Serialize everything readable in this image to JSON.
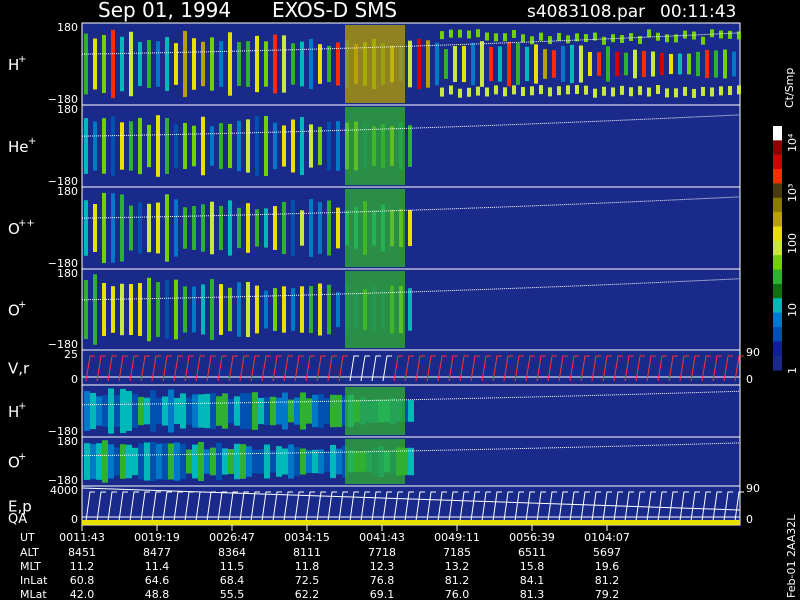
{
  "header": {
    "date": "Sep 01, 1994",
    "instrument": "EXOS-D SMS",
    "file": "s4083108.par",
    "time": "00:11:43"
  },
  "chart_data": {
    "type": "heatmap",
    "panels": [
      {
        "label": "H",
        "sup": "+",
        "ytop": "180",
        "ybot": "−180",
        "density": "high"
      },
      {
        "label": "He",
        "sup": "+",
        "ytop": "180",
        "ybot": "−180",
        "density": "med"
      },
      {
        "label": "O",
        "sup": "++",
        "ytop": "180",
        "ybot": "−180",
        "density": "med"
      },
      {
        "label": "O",
        "sup": "+",
        "ytop": "180",
        "ybot": "−180",
        "density": "med"
      },
      {
        "label": "V,r",
        "sup": "",
        "ytop": "25",
        "ybot": "0",
        "kind": "line",
        "right_top": "90",
        "right_bot": "0"
      },
      {
        "label": "H",
        "sup": "+",
        "ytop": "",
        "ybot": "−180",
        "density": "low"
      },
      {
        "label": "O",
        "sup": "+",
        "ytop": "180",
        "ybot": "−180",
        "density": "low"
      },
      {
        "label": "E,p",
        "label2": "QA",
        "sup": "",
        "ytop": "4000",
        "ybot": "0",
        "kind": "line",
        "right_top": "90",
        "right_bot": "0"
      }
    ],
    "colorbar": {
      "title": "Ct/Smp",
      "ticks": [
        "10⁴",
        "10³",
        "100",
        "10",
        "1"
      ],
      "colors": [
        "#ffffff",
        "#8b0000",
        "#d40000",
        "#ff2a00",
        "#4a3a10",
        "#8a7a00",
        "#b8a000",
        "#e8e000",
        "#c8e840",
        "#70d000",
        "#30b030",
        "#107010",
        "#00b8b8",
        "#0078c8",
        "#0050b0",
        "#102090",
        "#1a2a8a"
      ]
    },
    "x_axis": {
      "row_labels": [
        "UT",
        "ALT",
        "MLT",
        "InLat",
        "MLat"
      ],
      "ticks": [
        {
          "UT": "0011:43",
          "ALT": "8451",
          "MLT": "11.2",
          "InLat": "60.8",
          "MLat": "42.0"
        },
        {
          "UT": "0019:19",
          "ALT": "8477",
          "MLT": "11.4",
          "InLat": "64.6",
          "MLat": "48.8"
        },
        {
          "UT": "0026:47",
          "ALT": "8364",
          "MLT": "11.5",
          "InLat": "68.4",
          "MLat": "55.5"
        },
        {
          "UT": "0034:15",
          "ALT": "8111",
          "MLT": "11.8",
          "InLat": "72.5",
          "MLat": "62.2"
        },
        {
          "UT": "0041:43",
          "ALT": "7718",
          "MLT": "12.3",
          "InLat": "76.8",
          "MLat": "69.1"
        },
        {
          "UT": "0049:11",
          "ALT": "7185",
          "MLT": "13.2",
          "InLat": "81.2",
          "MLat": "76.0"
        },
        {
          "UT": "0056:39",
          "ALT": "6511",
          "MLT": "15.8",
          "InLat": "84.1",
          "MLat": "81.3"
        },
        {
          "UT": "0104:07",
          "ALT": "5697",
          "MLT": "19.6",
          "InLat": "81.2",
          "MLat": "79.2"
        }
      ]
    },
    "footer_note": "Feb-01 2AA32L"
  }
}
